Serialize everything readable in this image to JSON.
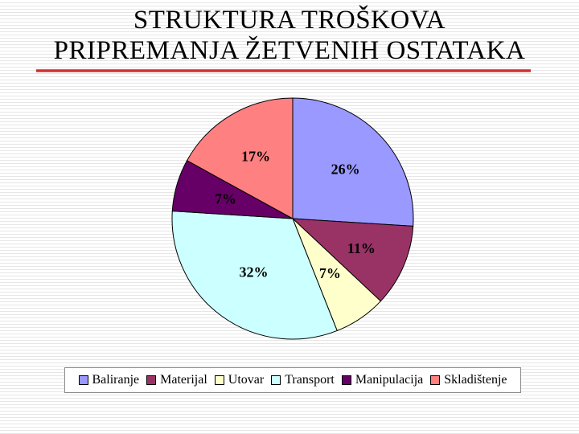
{
  "title": {
    "line1": "STRUKTURA TROŠKOVA",
    "line2": "PRIPREMANJA ŽETVENIH OSTATAKA"
  },
  "colors": {
    "title_underline": "#cc3333",
    "slice_border": "#000000"
  },
  "chart_data": {
    "type": "pie",
    "title": "",
    "legend_position": "bottom",
    "start_angle_deg": 0,
    "direction": "clockwise",
    "slices": [
      {
        "label": "Baliranje",
        "value": 26,
        "display": "26%",
        "color": "#9999ff"
      },
      {
        "label": "Materijal",
        "value": 11,
        "display": "11%",
        "color": "#993366"
      },
      {
        "label": "Utovar",
        "value": 7,
        "display": "7%",
        "color": "#ffffcc"
      },
      {
        "label": "Transport",
        "value": 32,
        "display": "32%",
        "color": "#ccffff"
      },
      {
        "label": "Manipulacija",
        "value": 7,
        "display": "7%",
        "color": "#660066"
      },
      {
        "label": "Skladištenje",
        "value": 17,
        "display": "17%",
        "color": "#ff8080"
      }
    ]
  }
}
